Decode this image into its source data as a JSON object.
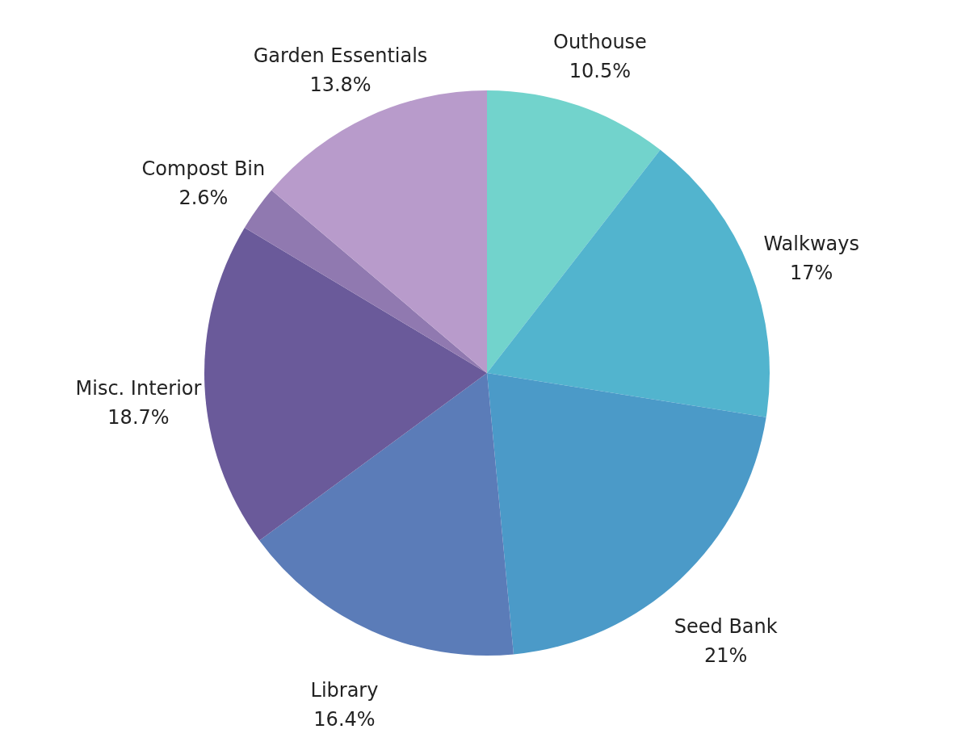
{
  "chart_data": {
    "type": "pie",
    "categories": [
      "Outhouse",
      "Walkways",
      "Seed Bank",
      "Library",
      "Misc. Interior",
      "Compost Bin",
      "Garden Essentials"
    ],
    "values": [
      10.5,
      17,
      21,
      16.4,
      18.7,
      2.6,
      13.8
    ],
    "value_labels": [
      "10.5%",
      "17%",
      "21%",
      "16.4%",
      "18.7%",
      "2.6%",
      "13.8%"
    ],
    "colors": [
      "#72d3cc",
      "#52b4ce",
      "#4b9ac8",
      "#5b7cb8",
      "#6a5a9a",
      "#9079b0",
      "#b89bcb"
    ],
    "legend": false
  }
}
